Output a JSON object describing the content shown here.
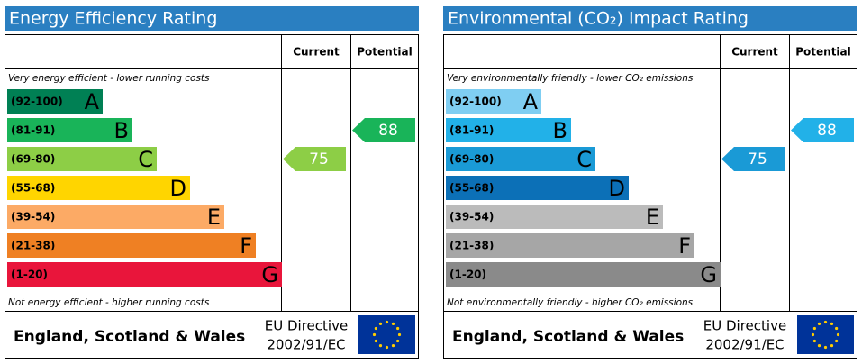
{
  "panels": [
    {
      "title": "Energy Efficiency Rating",
      "columns": [
        "Current",
        "Potential"
      ],
      "top_note": "Very energy efficient - lower running costs",
      "bottom_note": "Not energy efficient - higher running costs",
      "bands": [
        {
          "range": "(92-100)",
          "letter": "A",
          "color": "#008054"
        },
        {
          "range": "(81-91)",
          "letter": "B",
          "color": "#19b459"
        },
        {
          "range": "(69-80)",
          "letter": "C",
          "color": "#8dce46"
        },
        {
          "range": "(55-68)",
          "letter": "D",
          "color": "#ffd500"
        },
        {
          "range": "(39-54)",
          "letter": "E",
          "color": "#fcaa65"
        },
        {
          "range": "(21-38)",
          "letter": "F",
          "color": "#ef8023"
        },
        {
          "range": "(1-20)",
          "letter": "G",
          "color": "#e9153b"
        }
      ],
      "current": 75,
      "potential": 88,
      "footer": {
        "region": "England, Scotland & Wales",
        "directive": "EU Directive",
        "code": "2002/91/EC"
      }
    },
    {
      "title": "Environmental (CO₂) Impact Rating",
      "columns": [
        "Current",
        "Potential"
      ],
      "top_note": "Very environmentally friendly - lower CO₂ emissions",
      "bottom_note": "Not environmentally friendly - higher CO₂ emissions",
      "bands": [
        {
          "range": "(92-100)",
          "letter": "A",
          "color": "#7fcef2"
        },
        {
          "range": "(81-91)",
          "letter": "B",
          "color": "#22b1e8"
        },
        {
          "range": "(69-80)",
          "letter": "C",
          "color": "#1a9ad6"
        },
        {
          "range": "(55-68)",
          "letter": "D",
          "color": "#0c70b7"
        },
        {
          "range": "(39-54)",
          "letter": "E",
          "color": "#bbbbbb"
        },
        {
          "range": "(21-38)",
          "letter": "F",
          "color": "#a6a6a6"
        },
        {
          "range": "(1-20)",
          "letter": "G",
          "color": "#8a8a8a"
        }
      ],
      "current": 75,
      "potential": 88,
      "footer": {
        "region": "England, Scotland & Wales",
        "directive": "EU Directive",
        "code": "2002/91/EC"
      }
    }
  ]
}
